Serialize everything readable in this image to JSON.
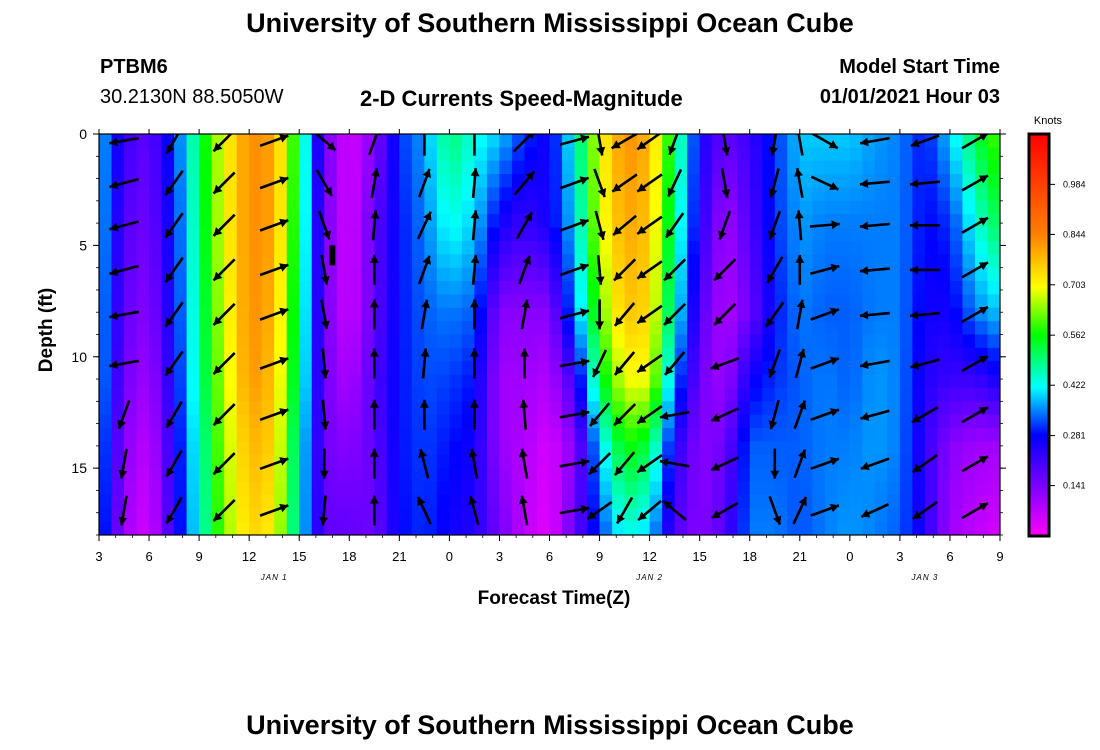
{
  "page": {
    "title_top": "University of Southern Mississippi Ocean Cube",
    "title_bottom": "University of Southern Mississippi Ocean Cube",
    "station_id": "PTBM6",
    "station_coords": "30.2130N 88.5050W",
    "chart_title": "2-D Currents Speed-Magnitude",
    "model_label": "Model Start Time",
    "model_time": "01/01/2021 Hour 03"
  },
  "chart_data": {
    "type": "heatmap",
    "title": "2-D Currents Speed-Magnitude",
    "xlabel": "Forecast Time(Z)",
    "ylabel": "Depth (ft)",
    "x_tick_labels": [
      "3",
      "6",
      "9",
      "12",
      "15",
      "18",
      "21",
      "0",
      "3",
      "6",
      "9",
      "12",
      "15",
      "18",
      "21",
      "0",
      "3",
      "6",
      "9"
    ],
    "x_hours": [
      0,
      3,
      6,
      9,
      12,
      15,
      18,
      21,
      24,
      27,
      30,
      33,
      36,
      39,
      42,
      45,
      48,
      51,
      54
    ],
    "date_labels": [
      {
        "text": "JAN 1",
        "hour": 10.5
      },
      {
        "text": "JAN 2",
        "hour": 33
      },
      {
        "text": "JAN 3",
        "hour": 49.5
      }
    ],
    "xlim_hours": [
      0,
      54
    ],
    "y_ticks": [
      0,
      5,
      10,
      15
    ],
    "ylim": [
      0,
      18
    ],
    "colorbar": {
      "unit": "Knots",
      "tick_values": [
        0.984,
        0.844,
        0.703,
        0.562,
        0.422,
        0.281,
        0.141
      ],
      "tick_labels": [
        "0.984",
        "0.844",
        "0.703",
        "0.562",
        "0.422",
        "0.281",
        "0.141"
      ],
      "range": [
        0,
        1.125
      ],
      "colors": [
        "#ff00ff",
        "#8000ff",
        "#0000ff",
        "#00ffff",
        "#00ff00",
        "#ffff00",
        "#ff8000",
        "#ff0000"
      ]
    },
    "speed_profile_knots": [
      {
        "h": 0,
        "v": [
          0.45,
          0.45,
          0.44,
          0.44,
          0.42,
          0.4
        ]
      },
      {
        "h": 1.5,
        "v": [
          0.25,
          0.22,
          0.2,
          0.18,
          0.15,
          0.12
        ]
      },
      {
        "h": 3,
        "v": [
          0.2,
          0.18,
          0.15,
          0.12,
          0.08,
          0.05
        ]
      },
      {
        "h": 4.5,
        "v": [
          0.35,
          0.33,
          0.32,
          0.3,
          0.28,
          0.27
        ]
      },
      {
        "h": 6,
        "v": [
          0.6,
          0.58,
          0.56,
          0.55,
          0.52,
          0.5
        ]
      },
      {
        "h": 7.5,
        "v": [
          0.8,
          0.8,
          0.78,
          0.76,
          0.74,
          0.72
        ]
      },
      {
        "h": 9,
        "v": [
          0.95,
          0.95,
          0.95,
          0.94,
          0.9,
          0.86
        ]
      },
      {
        "h": 10.5,
        "v": [
          0.92,
          0.92,
          0.9,
          0.88,
          0.86,
          0.82
        ]
      },
      {
        "h": 12,
        "v": [
          0.6,
          0.58,
          0.56,
          0.54,
          0.5,
          0.48
        ]
      },
      {
        "h": 13.5,
        "v": [
          0.18,
          0.18,
          0.18,
          0.18,
          0.18,
          0.2
        ]
      },
      {
        "h": 15,
        "v": [
          0.05,
          0.05,
          0.06,
          0.1,
          0.15,
          0.2
        ]
      },
      {
        "h": 16.5,
        "v": [
          0.15,
          0.2,
          0.2,
          0.22,
          0.2,
          0.18
        ]
      },
      {
        "h": 18,
        "v": [
          0.35,
          0.33,
          0.33,
          0.33,
          0.33,
          0.32
        ]
      },
      {
        "h": 19.5,
        "v": [
          0.42,
          0.4,
          0.38,
          0.37,
          0.36,
          0.35
        ]
      },
      {
        "h": 21,
        "v": [
          0.58,
          0.5,
          0.4,
          0.36,
          0.33,
          0.3
        ]
      },
      {
        "h": 22.5,
        "v": [
          0.5,
          0.45,
          0.38,
          0.33,
          0.3,
          0.28
        ]
      },
      {
        "h": 24,
        "v": [
          0.45,
          0.3,
          0.15,
          0.12,
          0.13,
          0.18
        ]
      },
      {
        "h": 25.5,
        "v": [
          0.35,
          0.25,
          0.15,
          0.12,
          0.1,
          0.08
        ]
      },
      {
        "h": 27,
        "v": [
          0.3,
          0.3,
          0.15,
          0.1,
          0.05,
          0.03
        ]
      },
      {
        "h": 28.5,
        "v": [
          0.5,
          0.45,
          0.4,
          0.25,
          0.15,
          0.2
        ]
      },
      {
        "h": 30,
        "v": [
          0.8,
          0.78,
          0.7,
          0.6,
          0.45,
          0.35
        ]
      },
      {
        "h": 31.5,
        "v": [
          0.95,
          0.92,
          0.88,
          0.8,
          0.65,
          0.5
        ]
      },
      {
        "h": 33,
        "v": [
          0.9,
          0.88,
          0.85,
          0.8,
          0.6,
          0.45
        ]
      },
      {
        "h": 34.5,
        "v": [
          0.6,
          0.55,
          0.5,
          0.4,
          0.28,
          0.22
        ]
      },
      {
        "h": 36,
        "v": [
          0.3,
          0.28,
          0.22,
          0.18,
          0.15,
          0.15
        ]
      },
      {
        "h": 37.5,
        "v": [
          0.2,
          0.12,
          0.1,
          0.12,
          0.18,
          0.22
        ]
      },
      {
        "h": 39,
        "v": [
          0.25,
          0.22,
          0.18,
          0.3,
          0.38,
          0.4
        ]
      },
      {
        "h": 40.5,
        "v": [
          0.35,
          0.35,
          0.33,
          0.35,
          0.38,
          0.4
        ]
      },
      {
        "h": 42,
        "v": [
          0.45,
          0.42,
          0.4,
          0.38,
          0.38,
          0.37
        ]
      },
      {
        "h": 43.5,
        "v": [
          0.45,
          0.4,
          0.38,
          0.4,
          0.4,
          0.4
        ]
      },
      {
        "h": 45,
        "v": [
          0.45,
          0.4,
          0.38,
          0.38,
          0.4,
          0.42
        ]
      },
      {
        "h": 46.5,
        "v": [
          0.42,
          0.4,
          0.4,
          0.42,
          0.42,
          0.4
        ]
      },
      {
        "h": 48,
        "v": [
          0.4,
          0.4,
          0.4,
          0.4,
          0.4,
          0.38
        ]
      },
      {
        "h": 49.5,
        "v": [
          0.33,
          0.32,
          0.3,
          0.28,
          0.26,
          0.28
        ]
      },
      {
        "h": 51,
        "v": [
          0.45,
          0.35,
          0.3,
          0.25,
          0.15,
          0.12
        ]
      },
      {
        "h": 52.5,
        "v": [
          0.6,
          0.5,
          0.4,
          0.25,
          0.12,
          0.08
        ]
      },
      {
        "h": 54,
        "v": [
          0.7,
          0.6,
          0.45,
          0.3,
          0.12,
          0.05
        ]
      }
    ],
    "profile_depths_ft": [
      0,
      4,
      8,
      11,
      14,
      18
    ],
    "vector_depths_ft": [
      0.3,
      2.2,
      4.1,
      6.1,
      8.1,
      10.3,
      12.6,
      14.8,
      16.9
    ],
    "vectors_deg": [
      {
        "h": 1.5,
        "dirs": [
          260,
          255,
          255,
          255,
          260,
          260,
          200,
          190,
          190
        ]
      },
      {
        "h": 4.5,
        "dirs": [
          210,
          215,
          215,
          215,
          215,
          215,
          210,
          210,
          210
        ]
      },
      {
        "h": 7.5,
        "dirs": [
          225,
          225,
          225,
          225,
          225,
          225,
          225,
          225,
          225
        ]
      },
      {
        "h": 10.5,
        "dirs": [
          70,
          70,
          70,
          70,
          70,
          70,
          70,
          70,
          70
        ]
      },
      {
        "h": 13.5,
        "dirs": [
          130,
          150,
          160,
          170,
          170,
          175,
          175,
          180,
          185
        ]
      },
      {
        "h": 16.5,
        "dirs": [
          20,
          10,
          5,
          0,
          0,
          0,
          0,
          0,
          0
        ]
      },
      {
        "h": 19.5,
        "dirs": [
          0,
          20,
          25,
          20,
          10,
          5,
          0,
          345,
          335
        ]
      },
      {
        "h": 22.5,
        "dirs": [
          0,
          5,
          5,
          5,
          0,
          0,
          0,
          350,
          345
        ]
      },
      {
        "h": 25.5,
        "dirs": [
          45,
          40,
          30,
          20,
          10,
          0,
          355,
          350,
          350
        ]
      },
      {
        "h": 28.5,
        "dirs": [
          75,
          70,
          70,
          70,
          75,
          80,
          80,
          80,
          80
        ]
      },
      {
        "h": 30,
        "dirs": [
          170,
          160,
          165,
          175,
          180,
          205,
          220,
          225,
          235
        ]
      },
      {
        "h": 31.5,
        "dirs": [
          240,
          235,
          230,
          225,
          220,
          220,
          225,
          220,
          210
        ]
      },
      {
        "h": 33,
        "dirs": [
          235,
          235,
          235,
          235,
          235,
          235,
          235,
          235,
          230
        ]
      },
      {
        "h": 34.5,
        "dirs": [
          200,
          205,
          215,
          225,
          225,
          220,
          260,
          280,
          310
        ]
      },
      {
        "h": 37.5,
        "dirs": [
          170,
          170,
          200,
          225,
          225,
          250,
          245,
          245,
          240
        ]
      },
      {
        "h": 40.5,
        "dirs": [
          190,
          195,
          200,
          210,
          215,
          200,
          195,
          180,
          160
        ]
      },
      {
        "h": 42,
        "dirs": [
          350,
          350,
          355,
          0,
          10,
          15,
          20,
          20,
          25
        ]
      },
      {
        "h": 43.5,
        "dirs": [
          120,
          115,
          85,
          75,
          70,
          70,
          70,
          70,
          70
        ]
      },
      {
        "h": 46.5,
        "dirs": [
          260,
          265,
          265,
          265,
          265,
          260,
          255,
          250,
          245
        ]
      },
      {
        "h": 49.5,
        "dirs": [
          250,
          265,
          270,
          270,
          265,
          255,
          240,
          235,
          235
        ]
      },
      {
        "h": 52.5,
        "dirs": [
          60,
          60,
          60,
          60,
          60,
          60,
          60,
          60,
          60
        ]
      }
    ]
  }
}
